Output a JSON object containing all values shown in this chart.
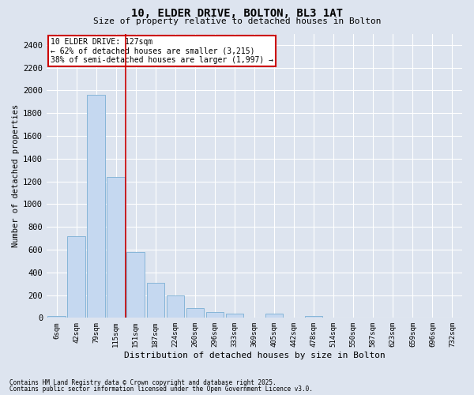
{
  "title_line1": "10, ELDER DRIVE, BOLTON, BL3 1AT",
  "title_line2": "Size of property relative to detached houses in Bolton",
  "xlabel": "Distribution of detached houses by size in Bolton",
  "ylabel": "Number of detached properties",
  "categories": [
    "6sqm",
    "42sqm",
    "79sqm",
    "115sqm",
    "151sqm",
    "187sqm",
    "224sqm",
    "260sqm",
    "296sqm",
    "333sqm",
    "369sqm",
    "405sqm",
    "442sqm",
    "478sqm",
    "514sqm",
    "550sqm",
    "587sqm",
    "623sqm",
    "659sqm",
    "696sqm",
    "732sqm"
  ],
  "values": [
    15,
    715,
    1960,
    1240,
    580,
    305,
    200,
    85,
    50,
    35,
    0,
    35,
    0,
    15,
    0,
    0,
    0,
    0,
    0,
    0,
    0
  ],
  "bar_color": "#c5d8f0",
  "bar_edge_color": "#7aafd4",
  "background_color": "#dde4ef",
  "grid_color": "#ffffff",
  "vline_x": 3.5,
  "vline_color": "#cc0000",
  "annotation_title": "10 ELDER DRIVE: 127sqm",
  "annotation_line1": "← 62% of detached houses are smaller (3,215)",
  "annotation_line2": "38% of semi-detached houses are larger (1,997) →",
  "annotation_box_color": "#cc0000",
  "ylim": [
    0,
    2500
  ],
  "yticks": [
    0,
    200,
    400,
    600,
    800,
    1000,
    1200,
    1400,
    1600,
    1800,
    2000,
    2200,
    2400
  ],
  "footnote1": "Contains HM Land Registry data © Crown copyright and database right 2025.",
  "footnote2": "Contains public sector information licensed under the Open Government Licence v3.0."
}
